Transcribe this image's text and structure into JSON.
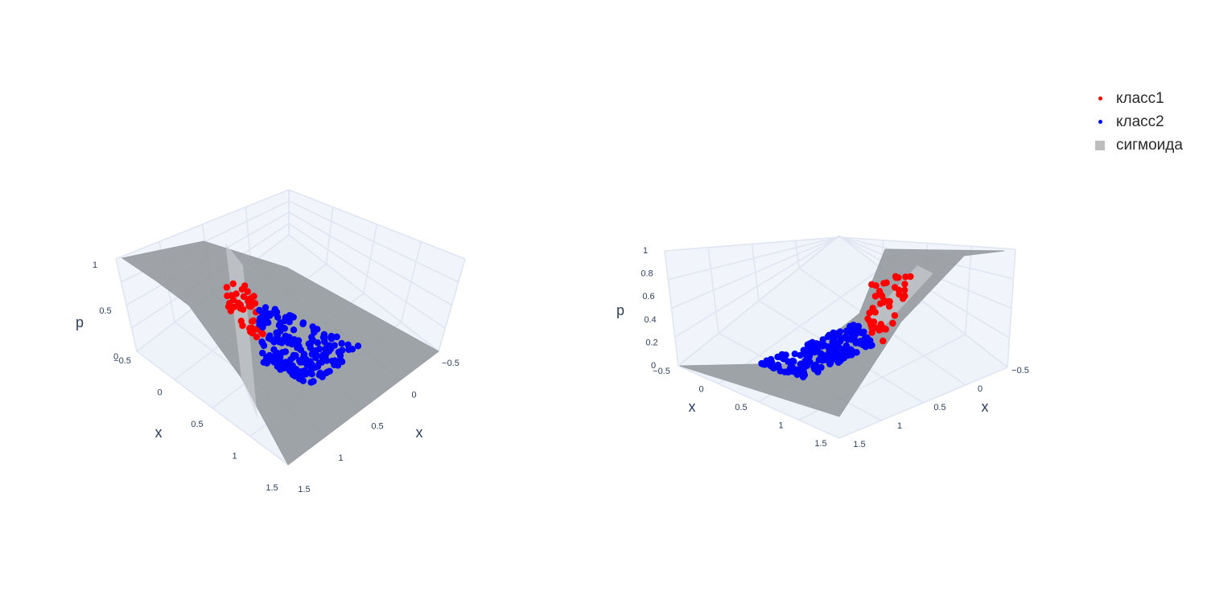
{
  "chart_data": [
    {
      "type": "surface3d",
      "scene": "left",
      "axes": {
        "x1": {
          "label": "x",
          "ticks": [
            "−0.5",
            "0",
            "0.5",
            "1",
            "1.5"
          ],
          "range": [
            -0.5,
            1.5
          ]
        },
        "x2": {
          "label": "x",
          "ticks": [
            "−0.5",
            "0",
            "0.5",
            "1",
            "1.5"
          ],
          "range": [
            -0.5,
            1.5
          ]
        },
        "z": {
          "label": "p",
          "ticks": [
            "0",
            "0.5",
            "1"
          ],
          "range": [
            0,
            1
          ]
        }
      }
    },
    {
      "type": "surface3d",
      "scene": "right",
      "axes": {
        "x1": {
          "label": "x",
          "ticks": [
            "−0.5",
            "0",
            "0.5",
            "1",
            "1.5"
          ],
          "range": [
            -0.5,
            1.5
          ]
        },
        "x2": {
          "label": "x",
          "ticks": [
            "−0.5",
            "0",
            "0.5",
            "1",
            "1.5"
          ],
          "range": [
            -0.5,
            1.5
          ]
        },
        "z": {
          "label": "p",
          "ticks": [
            "0",
            "0.2",
            "0.4",
            "0.6",
            "0.8",
            "1"
          ],
          "range": [
            0,
            1
          ]
        }
      }
    }
  ],
  "series": [
    {
      "name": "класс1",
      "type": "scatter3d",
      "color": "#ff0000",
      "count": 45
    },
    {
      "name": "класс2",
      "type": "scatter3d",
      "color": "#0000ff",
      "count": 200
    },
    {
      "name": "сигмоида",
      "type": "surface",
      "color": "#bdbdbd"
    }
  ],
  "legend": {
    "placement": "top-right",
    "items": [
      {
        "label": "класс1",
        "color": "#ff0000",
        "symbol": "dot"
      },
      {
        "label": "класс2",
        "color": "#0000ff",
        "symbol": "dot"
      },
      {
        "label": "сигмоида",
        "color": "#bdbdbd",
        "symbol": "square"
      }
    ]
  },
  "colors": {
    "background": "#ffffff",
    "grid": "#dfe6f2",
    "tick_text": "#2a3f5f",
    "surface": "#8c9196"
  }
}
